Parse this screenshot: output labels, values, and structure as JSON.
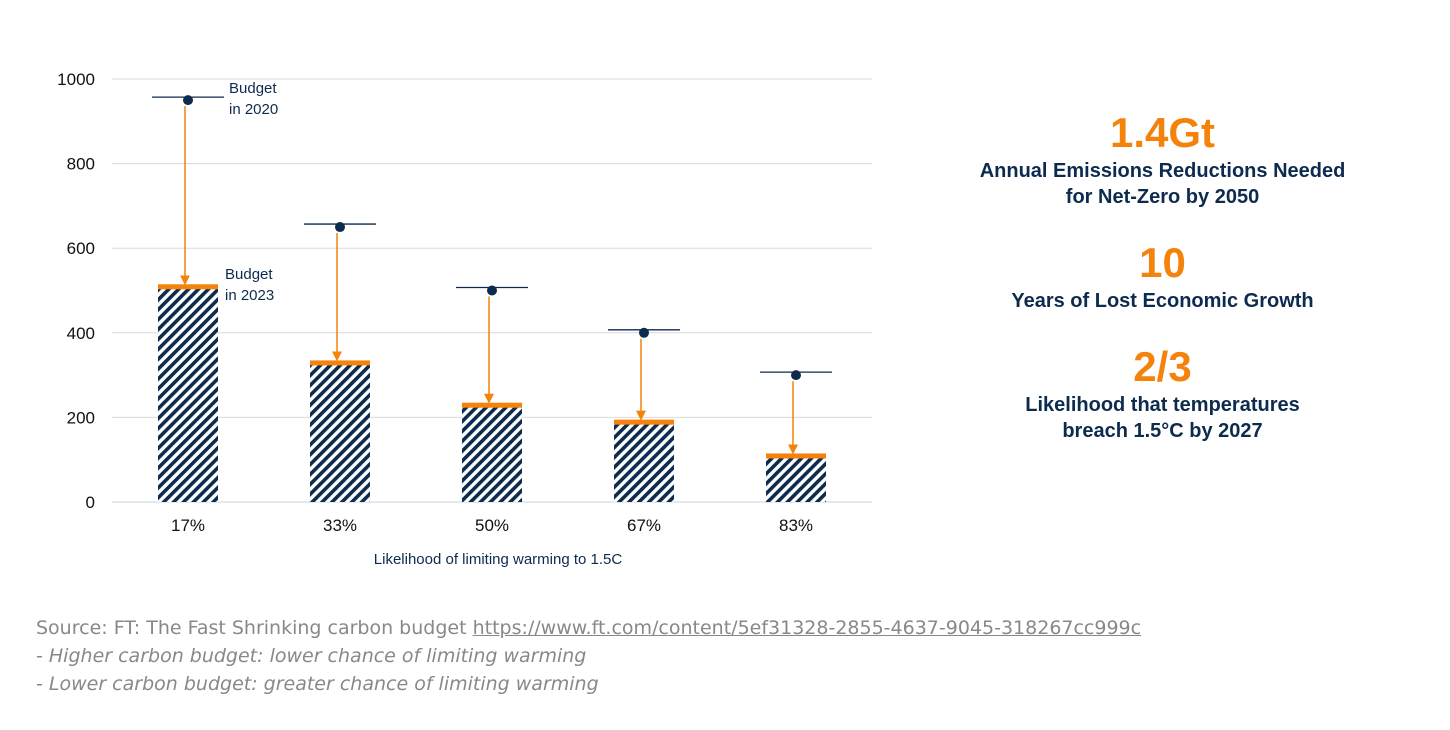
{
  "chart_data": {
    "type": "bar",
    "categories": [
      "17%",
      "33%",
      "50%",
      "67%",
      "83%"
    ],
    "series": [
      {
        "name": "Budget in 2023",
        "values": [
          510,
          330,
          230,
          190,
          110
        ]
      },
      {
        "name": "Budget in 2020",
        "values": [
          950,
          650,
          500,
          400,
          300
        ]
      }
    ],
    "xlabel": "Likelihood of limiting warming to 1.5C",
    "ylabel": "",
    "ylim": [
      0,
      1000
    ],
    "yticks": [
      0,
      200,
      400,
      600,
      800,
      1000
    ],
    "grid": true,
    "annotations": {
      "budget_2020": [
        "Budget",
        "in 2020"
      ],
      "budget_2023": [
        "Budget",
        "in 2023"
      ]
    },
    "colors": {
      "bar_hatch": "#0d2b4e",
      "budget_2023_line": "#f5820b",
      "arrow": "#f5820b",
      "budget_2020_marker": "#0d2b4e",
      "grid": "#d9d9d9"
    }
  },
  "stats": [
    {
      "value": "1.4Gt",
      "label_lines": [
        "Annual Emissions Reductions Needed",
        "for Net-Zero by 2050"
      ]
    },
    {
      "value": "10",
      "label_lines": [
        "Years of Lost Economic Growth"
      ]
    },
    {
      "value": "2/3",
      "label_lines": [
        "Likelihood that temperatures",
        "breach 1.5°C by 2027"
      ]
    }
  ],
  "source": {
    "prefix": "Source: FT: The Fast Shrinking carbon budget ",
    "url": "https://www.ft.com/content/5ef31328-2855-4637-9045-318267cc999c",
    "notes": [
      "- Higher carbon budget: lower chance of limiting warming",
      "- Lower carbon budget: greater chance of limiting warming"
    ]
  },
  "colors": {
    "accent": "#f5820b",
    "navy": "#0d2b4e",
    "source_text": "#888888"
  }
}
